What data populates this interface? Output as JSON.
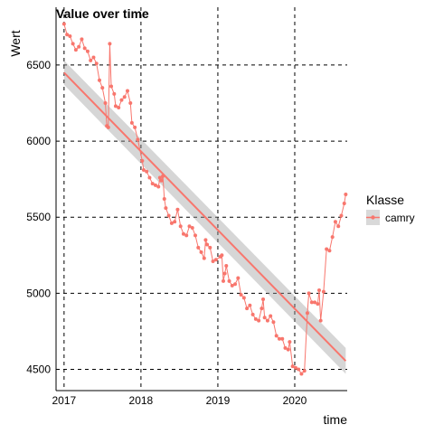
{
  "chart_data": {
    "type": "line",
    "title": "Value over time",
    "xlabel": "time",
    "ylabel": "Wert",
    "x_ticks": [
      "2017",
      "2018",
      "2019",
      "2020"
    ],
    "y_ticks": [
      4500,
      5000,
      5500,
      6000,
      6500
    ],
    "xlim": [
      "2016-11-24",
      "2020-09-06"
    ],
    "ylim": [
      4360,
      6880
    ],
    "grid": "major, dashed black",
    "legend": {
      "title": "Klasse",
      "position": "right"
    },
    "series": [
      {
        "name": "camry",
        "color": "#F8766D",
        "points": [
          [
            "2017-01-01",
            6770
          ],
          [
            "2017-01-15",
            6700
          ],
          [
            "2017-01-29",
            6690
          ],
          [
            "2017-02-12",
            6640
          ],
          [
            "2017-02-26",
            6600
          ],
          [
            "2017-03-12",
            6620
          ],
          [
            "2017-03-26",
            6670
          ],
          [
            "2017-04-09",
            6610
          ],
          [
            "2017-04-23",
            6590
          ],
          [
            "2017-05-07",
            6530
          ],
          [
            "2017-05-21",
            6550
          ],
          [
            "2017-06-04",
            6510
          ],
          [
            "2017-06-18",
            6400
          ],
          [
            "2017-07-02",
            6350
          ],
          [
            "2017-07-16",
            6250
          ],
          [
            "2017-07-23",
            6100
          ],
          [
            "2017-07-30",
            6090
          ],
          [
            "2017-08-06",
            6640
          ],
          [
            "2017-08-13",
            6360
          ],
          [
            "2017-08-27",
            6310
          ],
          [
            "2017-09-03",
            6230
          ],
          [
            "2017-09-17",
            6220
          ],
          [
            "2017-10-01",
            6270
          ],
          [
            "2017-10-15",
            6290
          ],
          [
            "2017-10-29",
            6330
          ],
          [
            "2017-11-12",
            6250
          ],
          [
            "2017-11-19",
            6120
          ],
          [
            "2017-12-03",
            6090
          ],
          [
            "2017-12-17",
            6010
          ],
          [
            "2018-01-07",
            5870
          ],
          [
            "2018-01-14",
            5810
          ],
          [
            "2018-01-28",
            5800
          ],
          [
            "2018-02-11",
            5760
          ],
          [
            "2018-02-25",
            5720
          ],
          [
            "2018-03-11",
            5710
          ],
          [
            "2018-03-25",
            5700
          ],
          [
            "2018-04-01",
            5760
          ],
          [
            "2018-04-08",
            5740
          ],
          [
            "2018-04-15",
            5770
          ],
          [
            "2018-04-22",
            5620
          ],
          [
            "2018-04-29",
            5560
          ],
          [
            "2018-05-13",
            5510
          ],
          [
            "2018-05-27",
            5460
          ],
          [
            "2018-06-10",
            5470
          ],
          [
            "2018-06-24",
            5550
          ],
          [
            "2018-07-08",
            5440
          ],
          [
            "2018-07-22",
            5390
          ],
          [
            "2018-08-05",
            5380
          ],
          [
            "2018-08-19",
            5440
          ],
          [
            "2018-09-02",
            5430
          ],
          [
            "2018-09-16",
            5380
          ],
          [
            "2018-09-30",
            5300
          ],
          [
            "2018-10-14",
            5270
          ],
          [
            "2018-10-28",
            5230
          ],
          [
            "2018-11-04",
            5350
          ],
          [
            "2018-11-11",
            5320
          ],
          [
            "2018-11-25",
            5300
          ],
          [
            "2018-12-09",
            5210
          ],
          [
            "2018-12-23",
            5220
          ],
          [
            "2019-01-13",
            5240
          ],
          [
            "2019-01-20",
            5250
          ],
          [
            "2019-01-27",
            5080
          ],
          [
            "2019-02-03",
            5130
          ],
          [
            "2019-02-10",
            5180
          ],
          [
            "2019-02-24",
            5080
          ],
          [
            "2019-03-10",
            5050
          ],
          [
            "2019-03-24",
            5060
          ],
          [
            "2019-04-07",
            5100
          ],
          [
            "2019-04-21",
            4990
          ],
          [
            "2019-05-05",
            4970
          ],
          [
            "2019-05-19",
            4900
          ],
          [
            "2019-06-02",
            4920
          ],
          [
            "2019-06-16",
            4860
          ],
          [
            "2019-06-30",
            4830
          ],
          [
            "2019-07-14",
            4820
          ],
          [
            "2019-07-28",
            4900
          ],
          [
            "2019-08-04",
            4960
          ],
          [
            "2019-08-11",
            4840
          ],
          [
            "2019-08-25",
            4820
          ],
          [
            "2019-09-08",
            4850
          ],
          [
            "2019-09-22",
            4810
          ],
          [
            "2019-10-06",
            4720
          ],
          [
            "2019-10-20",
            4700
          ],
          [
            "2019-11-03",
            4700
          ],
          [
            "2019-11-17",
            4640
          ],
          [
            "2019-12-01",
            4630
          ],
          [
            "2019-12-08",
            4680
          ],
          [
            "2019-12-22",
            4520
          ],
          [
            "2020-01-05",
            4510
          ],
          [
            "2020-01-19",
            4500
          ],
          [
            "2020-02-02",
            4470
          ],
          [
            "2020-02-16",
            4490
          ],
          [
            "2020-03-01",
            4870
          ],
          [
            "2020-03-08",
            5000
          ],
          [
            "2020-03-22",
            4940
          ],
          [
            "2020-04-05",
            4940
          ],
          [
            "2020-04-19",
            4930
          ],
          [
            "2020-04-26",
            5020
          ],
          [
            "2020-05-03",
            4820
          ],
          [
            "2020-05-17",
            5010
          ],
          [
            "2020-05-31",
            5290
          ],
          [
            "2020-06-14",
            5280
          ],
          [
            "2020-06-28",
            5370
          ],
          [
            "2020-07-12",
            5470
          ],
          [
            "2020-07-26",
            5440
          ],
          [
            "2020-08-09",
            5510
          ],
          [
            "2020-08-23",
            5590
          ],
          [
            "2020-08-30",
            5650
          ]
        ]
      }
    ],
    "trend": {
      "method": "linear fit with confidence band",
      "color": "#F8766D",
      "band_color": "#999999",
      "start": {
        "x": "2017-01-01",
        "y": 6450,
        "lo": 6370,
        "hi": 6530
      },
      "end": {
        "x": "2020-08-30",
        "y": 4555,
        "lo": 4470,
        "hi": 4640
      }
    }
  }
}
